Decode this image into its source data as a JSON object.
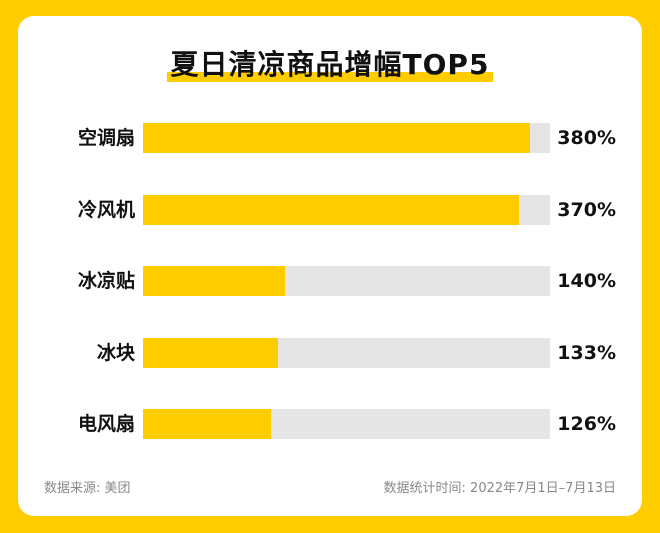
{
  "colors": {
    "frame": "#FFCC00",
    "bar": "#FFCC00",
    "track": "#E5E5E5",
    "text": "#111111",
    "footer_text": "#888888"
  },
  "chart_data": {
    "type": "bar",
    "orientation": "horizontal",
    "title": "夏日清凉商品增幅TOP5",
    "categories": [
      "空调扇",
      "冷风机",
      "冰凉贴",
      "冰块",
      "电风扇"
    ],
    "values": [
      380,
      370,
      140,
      133,
      126
    ],
    "value_labels": [
      "380%",
      "370%",
      "140%",
      "133%",
      "126%"
    ],
    "unit": "%",
    "xlim": [
      0,
      400
    ],
    "grid": false,
    "legend": "none"
  },
  "footer": {
    "source": "数据来源: 美团",
    "period": "数据统计时间: 2022年7月1日–7月13日"
  }
}
